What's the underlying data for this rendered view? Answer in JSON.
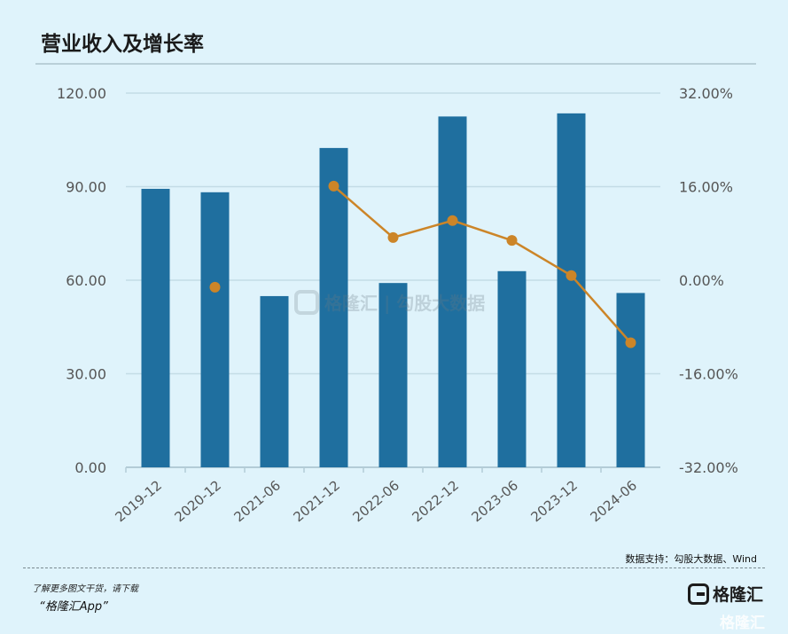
{
  "title": "营业收入及增长率",
  "source": "数据支持：勾股大数据、Wind",
  "promo_line1": "了解更多图文干货，请下载",
  "promo_line2": "“格隆汇App”",
  "logo_text": "格隆汇",
  "watermark_text": "格隆汇 | 勾股大数据",
  "corner_watermark": "格隆汇",
  "colors": {
    "bar": "#1f6f9f",
    "line": "#cc8528",
    "grid": "#c3dce6",
    "axis_text": "#555555",
    "background": "#dff3fb"
  },
  "chart_data": {
    "type": "bar",
    "categories": [
      "2019-12",
      "2020-12",
      "2021-06",
      "2021-12",
      "2022-06",
      "2022-12",
      "2023-06",
      "2023-12",
      "2024-06"
    ],
    "series": [
      {
        "type": "bar",
        "axis": "left",
        "values": [
          89.3,
          88.2,
          54.9,
          102.4,
          59.1,
          112.5,
          62.9,
          113.5,
          55.9
        ]
      },
      {
        "type": "line",
        "axis": "right",
        "values": [
          null,
          -1.2,
          null,
          16.1,
          7.3,
          10.2,
          6.8,
          0.8,
          -10.7
        ]
      }
    ],
    "y_left": {
      "min": 0,
      "max": 120,
      "ticks": [
        "0.00",
        "30.00",
        "60.00",
        "90.00",
        "120.00"
      ]
    },
    "y_right": {
      "min": -32,
      "max": 32,
      "ticks": [
        "-32.00%",
        "-16.00%",
        "0.00%",
        "16.00%",
        "32.00%"
      ]
    },
    "grid": true
  }
}
